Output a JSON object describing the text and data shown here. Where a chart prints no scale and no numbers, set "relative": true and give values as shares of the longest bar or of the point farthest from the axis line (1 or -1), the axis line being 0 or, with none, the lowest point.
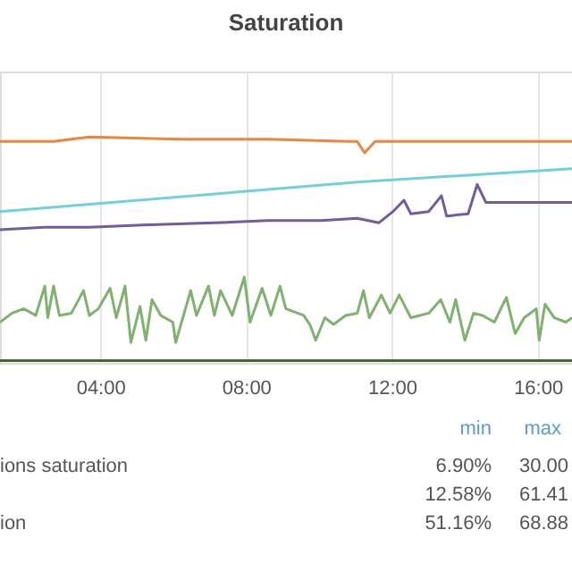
{
  "chart_data": {
    "type": "line",
    "title": "Saturation",
    "relative": true,
    "grid": "x",
    "xlim": [
      1.25,
      16.94
    ],
    "xticks": [
      {
        "value": 4,
        "label": "04:00"
      },
      {
        "value": 8,
        "label": "08:00"
      },
      {
        "value": 12,
        "label": "12:00"
      },
      {
        "value": 16,
        "label": "16:00"
      }
    ],
    "annotations": [
      "min",
      "max",
      "ions saturation",
      "6.90%",
      "30.00",
      "12.58%",
      "61.41",
      "ion",
      "51.16%",
      "68.88"
    ],
    "series": [
      {
        "color": "#ef843c",
        "x": [
          1.25,
          2.72,
          3.7,
          6.15,
          8.6,
          10.81,
          11.05,
          11.25,
          11.54,
          13.01,
          14.98,
          16.94
        ],
        "values": [
          0.98,
          0.98,
          1.0,
          0.99,
          0.99,
          0.98,
          0.98,
          0.93,
          0.98,
          0.98,
          0.98,
          0.98
        ]
      },
      {
        "color": "#6ed0e0",
        "x": [
          1.25,
          11.05,
          16.94
        ],
        "values": [
          0.67,
          0.8,
          0.86
        ]
      },
      {
        "color": "#705da0",
        "x": [
          1.25,
          2.48,
          3.7,
          5.17,
          7.13,
          8.6,
          10.07,
          11.05,
          11.64,
          12.03,
          12.33,
          12.52,
          13.01,
          13.36,
          13.5,
          14.09,
          14.34,
          14.58,
          15.47,
          16.94
        ],
        "values": [
          0.59,
          0.6,
          0.6,
          0.61,
          0.62,
          0.63,
          0.63,
          0.64,
          0.62,
          0.67,
          0.72,
          0.66,
          0.67,
          0.74,
          0.65,
          0.66,
          0.79,
          0.71,
          0.71,
          0.71
        ]
      },
      {
        "color": "#7eb26d",
        "x": [
          1.25,
          1.58,
          1.9,
          2.23,
          2.48,
          2.56,
          2.72,
          2.88,
          3.21,
          3.54,
          3.7,
          3.95,
          4.27,
          4.44,
          4.68,
          4.84,
          5.09,
          5.25,
          5.42,
          5.66,
          5.99,
          6.07,
          6.48,
          6.64,
          6.97,
          7.13,
          7.3,
          7.62,
          7.95,
          8.11,
          8.44,
          8.68,
          8.93,
          9.09,
          9.58,
          9.75,
          9.91,
          10.16,
          10.4,
          10.73,
          11.05,
          11.22,
          11.38,
          11.71,
          11.95,
          12.2,
          12.52,
          13.01,
          13.34,
          13.59,
          13.75,
          14.0,
          14.24,
          14.49,
          14.81,
          15.14,
          15.38,
          15.63,
          15.96,
          16.04,
          16.2,
          16.45,
          16.77,
          16.94
        ],
        "values": [
          0.18,
          0.22,
          0.24,
          0.21,
          0.34,
          0.2,
          0.34,
          0.21,
          0.22,
          0.32,
          0.21,
          0.24,
          0.33,
          0.2,
          0.34,
          0.09,
          0.25,
          0.1,
          0.28,
          0.21,
          0.18,
          0.09,
          0.32,
          0.21,
          0.34,
          0.21,
          0.32,
          0.21,
          0.38,
          0.18,
          0.33,
          0.21,
          0.34,
          0.24,
          0.21,
          0.17,
          0.1,
          0.2,
          0.17,
          0.21,
          0.22,
          0.32,
          0.2,
          0.3,
          0.22,
          0.3,
          0.2,
          0.22,
          0.28,
          0.18,
          0.28,
          0.1,
          0.22,
          0.21,
          0.18,
          0.29,
          0.13,
          0.2,
          0.24,
          0.1,
          0.26,
          0.2,
          0.18,
          0.2
        ]
      },
      {
        "color": "#3f6833",
        "x": [
          1.25,
          16.94
        ],
        "values": [
          0.01,
          0.01
        ]
      }
    ]
  }
}
